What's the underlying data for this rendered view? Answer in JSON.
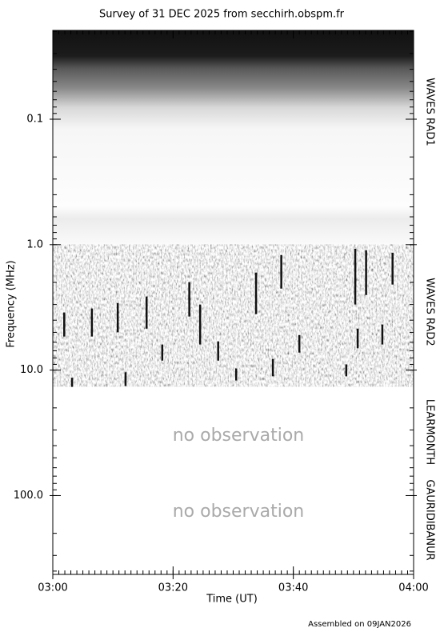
{
  "chart_data": {
    "type": "spectrogram",
    "title": "Survey of 31 DEC 2025 from secchirh.obspm.fr",
    "x_label": "Time (UT)",
    "y_label": "Frequency (MHz)",
    "footer": "Assembled on 09JAN2026",
    "xlim": [
      0,
      60
    ],
    "xticks": [
      {
        "value": 0,
        "label": "03:00"
      },
      {
        "value": 20,
        "label": "03:20"
      },
      {
        "value": 40,
        "label": "03:40"
      },
      {
        "value": 60,
        "label": "04:00"
      }
    ],
    "ylim": [
      0.0196,
      425
    ],
    "yticks": [
      0.1,
      {
        "value": 1,
        "label": "1.0"
      },
      {
        "value": 10,
        "label": "10.0"
      },
      {
        "value": 100,
        "label": "100.0"
      }
    ],
    "y_log": true,
    "y_inverted": true,
    "bands": [
      {
        "name": "WAVES RAD1",
        "range": [
          0.0196,
          1
        ],
        "style": "gradient"
      },
      {
        "name": "WAVES RAD2",
        "range": [
          1,
          13.6
        ],
        "style": "noise"
      },
      {
        "name": "LEARMONTH",
        "range": [
          13.6,
          180
        ],
        "style": "empty",
        "note": "no observation"
      },
      {
        "name": "GAURIDIBANUR",
        "range": [
          180,
          425
        ],
        "style": "empty",
        "note": "no observation"
      }
    ],
    "bursts": [
      [
        52.1,
        1.11,
        2.52
      ],
      [
        50.3,
        1.08,
        3.0
      ],
      [
        50.7,
        4.67,
        6.7
      ],
      [
        38.0,
        1.21,
        2.24
      ],
      [
        33.8,
        1.67,
        3.58
      ],
      [
        56.5,
        1.16,
        2.08
      ],
      [
        22.7,
        1.99,
        3.74
      ],
      [
        24.5,
        3.0,
        6.25
      ],
      [
        15.6,
        2.59,
        4.67
      ],
      [
        6.5,
        3.23,
        5.4
      ],
      [
        1.9,
        3.47,
        5.4
      ],
      [
        10.8,
        2.92,
        5.0
      ],
      [
        18.2,
        6.25,
        8.4
      ],
      [
        27.5,
        5.9,
        8.4
      ],
      [
        36.6,
        8.14,
        11.2
      ],
      [
        54.8,
        4.33,
        6.25
      ],
      [
        12.1,
        10.4,
        13.4
      ],
      [
        3.2,
        11.5,
        13.6
      ],
      [
        30.5,
        9.7,
        12.1
      ],
      [
        48.8,
        9.0,
        11.2
      ],
      [
        41.0,
        5.25,
        7.25
      ]
    ]
  }
}
